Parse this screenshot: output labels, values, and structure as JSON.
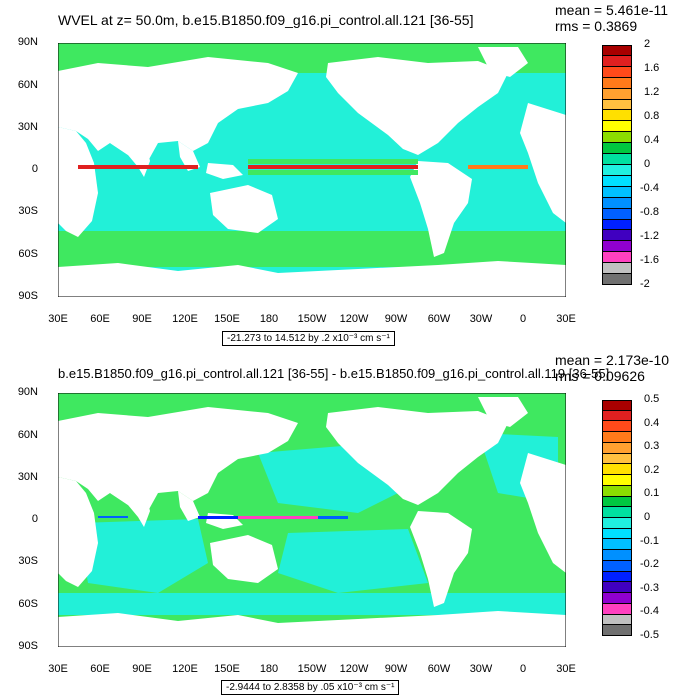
{
  "panels": [
    {
      "title": "WVEL at z=  50.0m, b.e15.B1850.f09_g16.pi_control.all.121 [36-55]",
      "mean": "mean = 5.461e-11",
      "rms": "rms = 0.3869",
      "range_label": "-21.273 to 14.512 by .2 x10⁻³ cm s⁻¹",
      "lat_labels": [
        "90N",
        "60N",
        "30N",
        "0",
        "30S",
        "60S",
        "90S"
      ],
      "lon_labels": [
        "30E",
        "60E",
        "90E",
        "120E",
        "150E",
        "180",
        "150W",
        "120W",
        "90W",
        "60W",
        "30W",
        "0",
        "30E"
      ],
      "colorbar_labels": [
        "2",
        "1.6",
        "1.2",
        "0.8",
        "0.4",
        "0",
        "-0.4",
        "-0.8",
        "-1.2",
        "-1.6",
        "-2"
      ],
      "colorbar_colors": [
        "#a80000",
        "#e02020",
        "#ff4a1a",
        "#ff7a1a",
        "#ffa030",
        "#ffc040",
        "#ffe000",
        "#ffff00",
        "#8cdd00",
        "#00c840",
        "#00e0a0",
        "#20f0e0",
        "#00e0ff",
        "#00c0ff",
        "#0090ff",
        "#0060ff",
        "#0020ff",
        "#4000c0",
        "#9000d0",
        "#ff40c0",
        "#c0c0c0",
        "#707070"
      ]
    },
    {
      "title": "b.e15.B1850.f09_g16.pi_control.all.121 [36-55] - b.e15.B1850.f09_g16.pi_control.all.119 [36-55]",
      "mean": "mean = 2.173e-10",
      "rms": "rms = 0.09626",
      "range_label": "-2.9444 to 2.8358 by .05 x10⁻³ cm s⁻¹",
      "lat_labels": [
        "90N",
        "60N",
        "30N",
        "0",
        "30S",
        "60S",
        "90S"
      ],
      "lon_labels": [
        "30E",
        "60E",
        "90E",
        "120E",
        "150E",
        "180",
        "150W",
        "120W",
        "90W",
        "60W",
        "30W",
        "0",
        "30E"
      ],
      "colorbar_labels": [
        "0.5",
        "0.4",
        "0.3",
        "0.2",
        "0.1",
        "0",
        "-0.1",
        "-0.2",
        "-0.3",
        "-0.4",
        "-0.5"
      ],
      "colorbar_colors": [
        "#a80000",
        "#e02020",
        "#ff4a1a",
        "#ff7a1a",
        "#ffa030",
        "#ffc040",
        "#ffe000",
        "#ffff00",
        "#8cdd00",
        "#00c840",
        "#00e0a0",
        "#20f0e0",
        "#00e0ff",
        "#00c0ff",
        "#0090ff",
        "#0060ff",
        "#0020ff",
        "#4000c0",
        "#9000d0",
        "#ff40c0",
        "#c0c0c0",
        "#707070"
      ]
    }
  ]
}
